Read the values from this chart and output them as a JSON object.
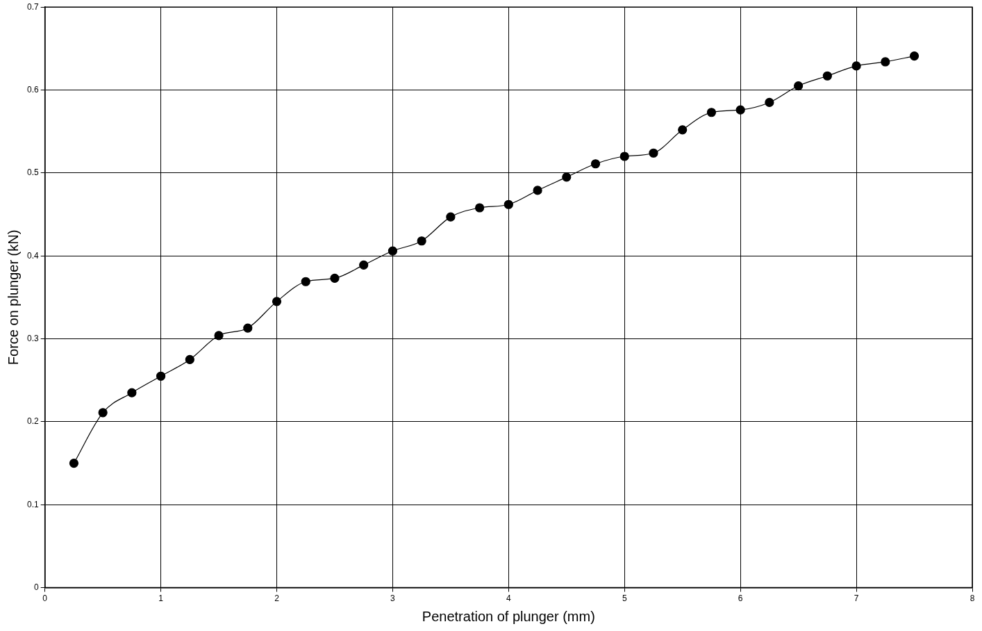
{
  "chart_data": {
    "type": "line",
    "xlabel": "Penetration of plunger (mm)",
    "ylabel": "Force on plunger (kN)",
    "x": [
      0.25,
      0.5,
      0.75,
      1,
      1.25,
      1.5,
      1.75,
      2,
      2.25,
      2.5,
      2.75,
      3,
      3.25,
      3.5,
      3.75,
      4,
      4.25,
      4.5,
      4.75,
      5,
      5.25,
      5.5,
      5.75,
      6,
      6.25,
      6.5,
      6.75,
      7,
      7.25,
      7.5
    ],
    "series": [
      {
        "color": "#000000",
        "values": [
          0.15,
          0.211,
          0.235,
          0.255,
          0.275,
          0.304,
          0.313,
          0.345,
          0.369,
          0.373,
          0.389,
          0.406,
          0.418,
          0.447,
          0.458,
          0.462,
          0.479,
          0.495,
          0.511,
          0.52,
          0.524,
          0.552,
          0.573,
          0.576,
          0.585,
          0.605,
          0.617,
          0.629,
          0.634,
          0.641
        ]
      }
    ],
    "xlim": [
      0,
      8
    ],
    "xticks": [
      0,
      1,
      2,
      3,
      4,
      5,
      6,
      7,
      8
    ],
    "ylim": [
      0,
      0.7
    ],
    "yticks": [
      0,
      0.1,
      0.2,
      0.3,
      0.4,
      0.5,
      0.6,
      0.7
    ],
    "grid": true,
    "legend": false,
    "marker": "circle",
    "line_style": "solid"
  }
}
